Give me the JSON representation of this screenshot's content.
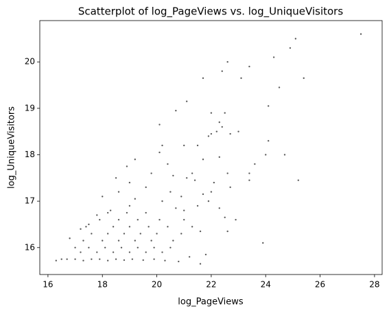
{
  "chart_data": {
    "type": "scatter",
    "title": "Scatterplot of log_PageViews vs. log_UniqueVisitors",
    "x_label": "log_PageViews",
    "y_label": "log_UniqueVisitors",
    "color": "#333333",
    "xlim": [
      15.7,
      28.28
    ],
    "ylim": [
      15.42,
      20.89
    ],
    "xticks": [
      16,
      18,
      20,
      22,
      24,
      26,
      28
    ],
    "yticks": [
      16,
      17,
      18,
      19,
      20
    ],
    "x": [
      27.5,
      25.1,
      24.9,
      24.3,
      23.4,
      22.6,
      22.4,
      23.1,
      21.7,
      25.4,
      24.5,
      21.1,
      22.0,
      22.5,
      24.1,
      20.7,
      20.1,
      22.3,
      22.4,
      22.2,
      22.0,
      22.7,
      23.0,
      21.9,
      24.0,
      24.7,
      24.1,
      25.2,
      23.4,
      23.4,
      23.9,
      23.6,
      21.8,
      21.6,
      22.9,
      22.5,
      22.7,
      21.0,
      21.5,
      21.7,
      22.3,
      20.2,
      19.2,
      18.9,
      20.1,
      21.1,
      21.4,
      22.1,
      22.0,
      21.9,
      21.0,
      20.5,
      19.6,
      19.0,
      18.6,
      18.3,
      18.0,
      17.8,
      17.5,
      17.2,
      16.8,
      17.0,
      16.5,
      16.3,
      16.7,
      17.0,
      17.3,
      17.6,
      17.9,
      18.2,
      18.5,
      18.8,
      19.1,
      19.5,
      19.9,
      20.3,
      20.8,
      21.2,
      17.2,
      17.8,
      18.4,
      19.0,
      19.6,
      20.2,
      17.5,
      18.1,
      18.7,
      19.3,
      19.9,
      20.5,
      17.3,
      18.0,
      18.6,
      19.2,
      19.8,
      20.6,
      17.6,
      18.2,
      18.8,
      19.4,
      20.0,
      20.9,
      17.4,
      18.4,
      19.0,
      19.7,
      20.4,
      21.3,
      17.9,
      18.6,
      19.3,
      20.1,
      21.0,
      18.2,
      18.9,
      19.6,
      20.7,
      21.5,
      19.2,
      20.2,
      20.9,
      21.7,
      22.3,
      21.6,
      22.6,
      19.0,
      18.5,
      19.8,
      20.6,
      21.3,
      20.4,
      22.6
    ],
    "y": [
      20.6,
      20.5,
      20.3,
      20.1,
      19.9,
      20.0,
      19.8,
      19.65,
      19.65,
      19.65,
      19.45,
      19.15,
      18.9,
      18.9,
      19.05,
      18.95,
      18.65,
      18.7,
      18.6,
      18.5,
      18.45,
      18.45,
      18.5,
      18.4,
      18.0,
      18.0,
      18.3,
      17.45,
      17.6,
      17.45,
      16.1,
      17.8,
      15.85,
      15.65,
      16.6,
      16.65,
      17.3,
      18.2,
      18.2,
      17.9,
      17.95,
      18.2,
      17.9,
      17.75,
      18.05,
      17.5,
      17.45,
      17.4,
      17.2,
      17.0,
      16.8,
      17.2,
      17.3,
      17.4,
      17.2,
      16.8,
      17.1,
      16.7,
      16.5,
      16.4,
      16.2,
      16.0,
      15.75,
      15.72,
      15.75,
      15.75,
      15.72,
      15.75,
      15.75,
      15.72,
      15.75,
      15.73,
      15.75,
      15.73,
      15.75,
      15.72,
      15.7,
      15.8,
      15.9,
      15.9,
      15.9,
      15.9,
      15.9,
      15.9,
      16.0,
      16.0,
      16.0,
      16.0,
      16.0,
      16.0,
      16.15,
      16.15,
      16.15,
      16.15,
      16.15,
      16.15,
      16.3,
      16.3,
      16.3,
      16.3,
      16.3,
      16.3,
      16.45,
      16.45,
      16.45,
      16.45,
      16.45,
      16.45,
      16.6,
      16.6,
      16.6,
      16.6,
      16.6,
      16.75,
      16.75,
      16.75,
      16.85,
      16.9,
      17.05,
      17.0,
      17.1,
      17.15,
      16.85,
      16.35,
      16.35,
      16.9,
      17.5,
      17.6,
      17.55,
      17.6,
      17.8,
      17.6
    ]
  }
}
